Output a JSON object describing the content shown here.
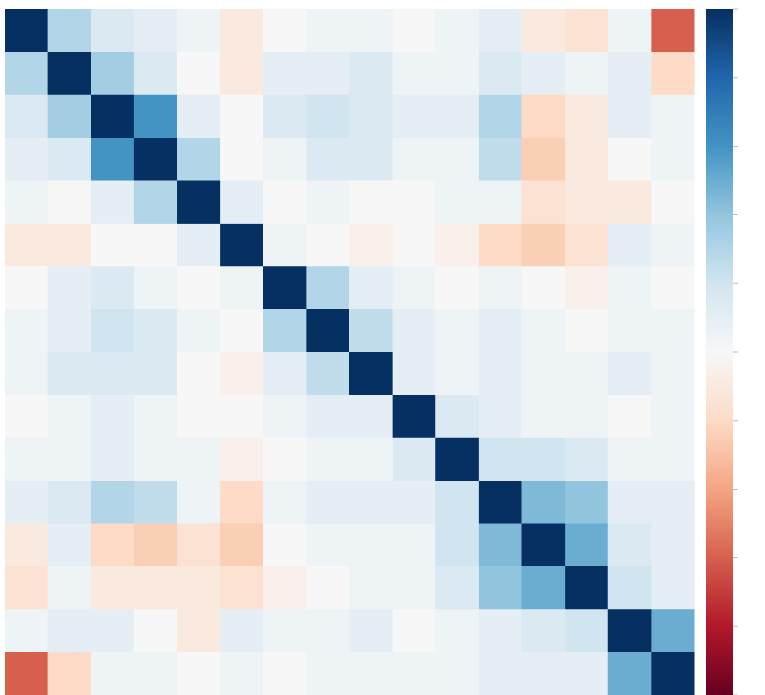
{
  "chart_data": {
    "type": "heatmap",
    "z": [
      [
        1,
        0.3,
        0.15,
        0.1,
        0.05,
        -0.1,
        0,
        0.05,
        0.05,
        0,
        0.05,
        0.1,
        -0.1,
        -0.15,
        0.05,
        -0.6
      ],
      [
        0.3,
        1,
        0.35,
        0.15,
        0,
        -0.1,
        0.1,
        0.1,
        0.15,
        0.05,
        0.05,
        0.15,
        0.1,
        0.05,
        0.1,
        -0.2
      ],
      [
        0.15,
        0.35,
        1,
        0.6,
        0.1,
        0,
        0.15,
        0.2,
        0.15,
        0.1,
        0.1,
        0.3,
        -0.2,
        -0.1,
        0.1,
        0.05
      ],
      [
        0.1,
        0.15,
        0.6,
        1,
        0.3,
        0,
        0.05,
        0.15,
        0.15,
        0.05,
        0.05,
        0.25,
        -0.25,
        -0.1,
        0,
        0.05
      ],
      [
        0.05,
        0,
        0.1,
        0.3,
        1,
        0.1,
        0,
        0.05,
        0,
        0,
        0.05,
        0.05,
        -0.15,
        -0.1,
        -0.1,
        0
      ],
      [
        -0.1,
        -0.1,
        0,
        0,
        0.1,
        1,
        0.05,
        0,
        -0.05,
        0,
        -0.05,
        -0.2,
        -0.25,
        -0.15,
        0.1,
        0.05
      ],
      [
        0,
        0.1,
        0.15,
        0.05,
        0,
        0.05,
        1,
        0.3,
        0.1,
        0.05,
        0,
        0.05,
        0,
        -0.05,
        0.05,
        0
      ],
      [
        0.05,
        0.1,
        0.2,
        0.15,
        0.05,
        0,
        0.3,
        1,
        0.25,
        0.1,
        0.05,
        0.1,
        0.05,
        0,
        0.05,
        0.05
      ],
      [
        0.05,
        0.15,
        0.15,
        0.15,
        0,
        -0.05,
        0.1,
        0.25,
        1,
        0.1,
        0.05,
        0.1,
        0.05,
        0.05,
        0.1,
        0.05
      ],
      [
        0,
        0.05,
        0.1,
        0.05,
        0,
        0,
        0.05,
        0.1,
        0.1,
        1,
        0.15,
        0.1,
        0.05,
        0.05,
        0,
        0.05
      ],
      [
        0.05,
        0.05,
        0.1,
        0.05,
        0.05,
        -0.05,
        0,
        0.05,
        0.05,
        0.15,
        1,
        0.2,
        0.2,
        0.15,
        0.05,
        0.05
      ],
      [
        0.1,
        0.15,
        0.3,
        0.25,
        0.05,
        -0.2,
        0.05,
        0.1,
        0.1,
        0.1,
        0.2,
        1,
        0.45,
        0.4,
        0.1,
        0.1
      ],
      [
        -0.1,
        0.1,
        -0.2,
        -0.25,
        -0.15,
        -0.25,
        0,
        0.05,
        0.05,
        0.05,
        0.2,
        0.45,
        1,
        0.5,
        0.15,
        0.1
      ],
      [
        -0.15,
        0.05,
        -0.1,
        -0.1,
        -0.1,
        -0.15,
        -0.05,
        0,
        0.05,
        0.05,
        0.15,
        0.4,
        0.5,
        1,
        0.2,
        0.1
      ],
      [
        0.05,
        0.1,
        0.1,
        0,
        -0.1,
        0.1,
        0.05,
        0.05,
        0.1,
        0,
        0.05,
        0.1,
        0.15,
        0.2,
        1,
        0.5
      ],
      [
        -0.6,
        -0.2,
        0.05,
        0.05,
        0,
        0.05,
        0,
        0.05,
        0.05,
        0.05,
        0.05,
        0.1,
        0.1,
        0.1,
        0.5,
        1
      ]
    ],
    "zlim": [
      -1,
      1
    ],
    "zticks": [
      -1,
      -0.8,
      -0.6,
      -0.4,
      -0.2,
      0,
      0.2,
      0.4,
      0.6,
      0.8,
      1
    ],
    "colorscale": [
      "#67001f",
      "#b2182b",
      "#d6604d",
      "#f4a582",
      "#fddbc7",
      "#f7f7f7",
      "#d1e5f0",
      "#92c5de",
      "#4393c3",
      "#2166ac",
      "#053061"
    ]
  }
}
